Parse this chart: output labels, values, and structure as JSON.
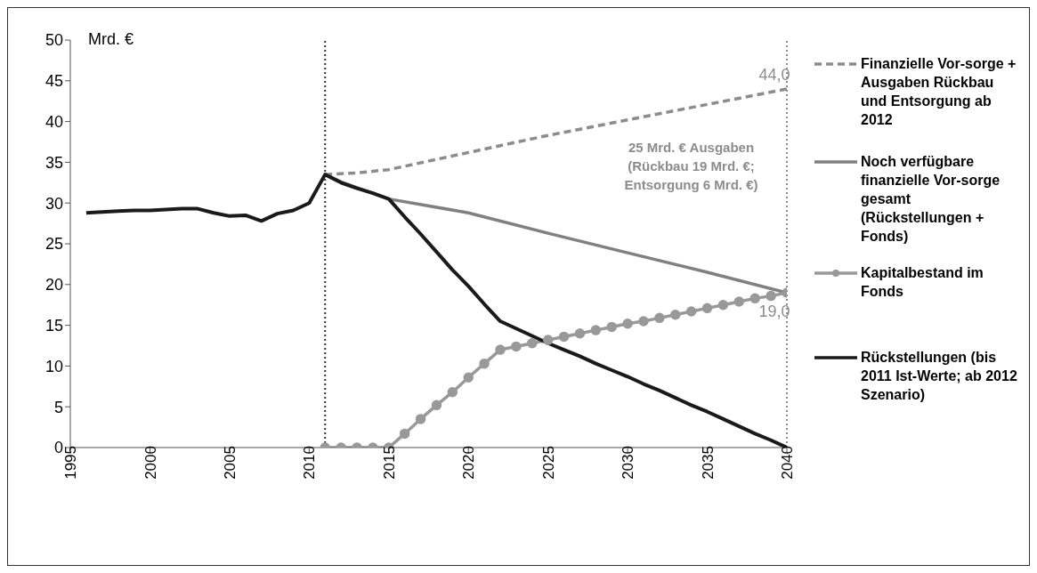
{
  "chart_data": {
    "type": "line",
    "ylabel": "Mrd. €",
    "xlim": [
      1995,
      2040
    ],
    "xticks": [
      1995,
      2000,
      2005,
      2010,
      2015,
      2020,
      2025,
      2030,
      2035,
      2040
    ],
    "ylim": [
      0,
      50
    ],
    "yticks": [
      0,
      5,
      10,
      15,
      20,
      25,
      30,
      35,
      40,
      45,
      50
    ],
    "legend": "right",
    "series": [
      {
        "name": "Finanzielle Vor-sorge + Ausgaben Rückbau und Entsorgung ab 2012",
        "color": "#8c8c8c",
        "line_style": "dashed",
        "marker": "none",
        "x": [
          2011,
          2013,
          2015,
          2020,
          2025,
          2030,
          2035,
          2040
        ],
        "values": [
          33.5,
          33.7,
          34.1,
          36.2,
          38.3,
          40.2,
          42.1,
          44.0
        ]
      },
      {
        "name": "Noch verfügbare finanzielle Vor-sorge gesamt (Rückstellungen + Fonds)",
        "color": "#808080",
        "line_style": "solid",
        "marker": "none",
        "x": [
          2011,
          2012,
          2013,
          2014,
          2015,
          2020,
          2025,
          2030,
          2035,
          2040
        ],
        "values": [
          33.5,
          32.6,
          31.9,
          31.2,
          30.5,
          28.8,
          26.3,
          23.9,
          21.5,
          19.0
        ]
      },
      {
        "name": "Kapitalbestand im Fonds",
        "color": "#999999",
        "line_style": "solid",
        "marker": "circle",
        "x": [
          2011,
          2012,
          2013,
          2014,
          2015,
          2016,
          2017,
          2018,
          2019,
          2020,
          2021,
          2022,
          2023,
          2024,
          2025,
          2026,
          2027,
          2028,
          2029,
          2030,
          2031,
          2032,
          2033,
          2034,
          2035,
          2036,
          2037,
          2038,
          2039,
          2040
        ],
        "values": [
          0,
          0,
          0,
          0,
          0,
          1.7,
          3.5,
          5.2,
          6.8,
          8.6,
          10.3,
          12.0,
          12.4,
          12.8,
          13.2,
          13.6,
          14.0,
          14.4,
          14.8,
          15.2,
          15.5,
          15.9,
          16.3,
          16.7,
          17.1,
          17.5,
          17.9,
          18.3,
          18.6,
          19.0
        ]
      },
      {
        "name": "Rückstellungen (bis 2011 Ist-Werte; ab 2012 Szenario)",
        "color": "#1a1a1a",
        "line_style": "solid",
        "marker": "none",
        "x": [
          1996,
          1997,
          1998,
          1999,
          2000,
          2001,
          2002,
          2003,
          2004,
          2005,
          2006,
          2007,
          2008,
          2009,
          2010,
          2011,
          2012,
          2013,
          2014,
          2015,
          2016,
          2017,
          2018,
          2019,
          2020,
          2021,
          2022,
          2023,
          2024,
          2025,
          2026,
          2027,
          2028,
          2029,
          2030,
          2031,
          2032,
          2033,
          2034,
          2035,
          2036,
          2037,
          2038,
          2039,
          2040
        ],
        "values": [
          28.8,
          28.9,
          29.0,
          29.1,
          29.1,
          29.2,
          29.3,
          29.3,
          28.8,
          28.4,
          28.5,
          27.8,
          28.7,
          29.1,
          30.0,
          33.5,
          32.5,
          31.8,
          31.2,
          30.5,
          28.3,
          26.2,
          24.0,
          21.8,
          19.8,
          17.6,
          15.5,
          14.6,
          13.7,
          12.8,
          12.0,
          11.2,
          10.3,
          9.5,
          8.7,
          7.8,
          7.0,
          6.1,
          5.2,
          4.4,
          3.5,
          2.6,
          1.7,
          0.9,
          0
        ]
      }
    ],
    "ref_lines": [
      {
        "axis": "x",
        "value": 2011,
        "color": "#333333",
        "line_style": "dotted"
      },
      {
        "axis": "x",
        "value": 2040,
        "color": "#8c8c8c",
        "line_style": "dotted"
      }
    ],
    "annotations": [
      {
        "text": "44,0",
        "x": 2040,
        "y": 44
      },
      {
        "text": "19,0",
        "x": 2040,
        "y": 19
      },
      "25 Mrd. € Ausgaben (Rückbau 19 Mrd. €; Entsorgung 6 Mrd. €)"
    ]
  }
}
